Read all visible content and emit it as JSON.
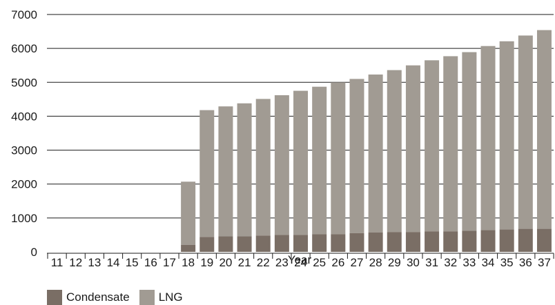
{
  "chart_data": {
    "type": "bar",
    "stacked": true,
    "title": "",
    "xlabel": "Year",
    "ylabel": "",
    "ylim": [
      0,
      7000
    ],
    "yticks": [
      0,
      1000,
      2000,
      3000,
      4000,
      5000,
      6000,
      7000
    ],
    "grid": true,
    "legend_placement": "bottom-left",
    "categories": [
      "11",
      "12",
      "13",
      "14",
      "15",
      "16",
      "17",
      "18",
      "19",
      "20",
      "21",
      "22",
      "23",
      "24",
      "25",
      "26",
      "27",
      "28",
      "29",
      "30",
      "31",
      "32",
      "33",
      "34",
      "35",
      "36",
      "37"
    ],
    "series": [
      {
        "name": "Condensate",
        "color": "#7a6e65",
        "values": [
          0,
          0,
          0,
          0,
          0,
          0,
          0,
          210,
          440,
          460,
          460,
          480,
          500,
          500,
          520,
          520,
          550,
          570,
          580,
          580,
          600,
          600,
          620,
          640,
          660,
          680,
          680
        ]
      },
      {
        "name": "LNG",
        "color": "#a19b93",
        "values": [
          0,
          0,
          0,
          0,
          0,
          0,
          0,
          1860,
          3740,
          3830,
          3920,
          4030,
          4120,
          4250,
          4350,
          4480,
          4550,
          4660,
          4780,
          4920,
          5050,
          5170,
          5270,
          5430,
          5550,
          5700,
          5860
        ]
      }
    ]
  }
}
